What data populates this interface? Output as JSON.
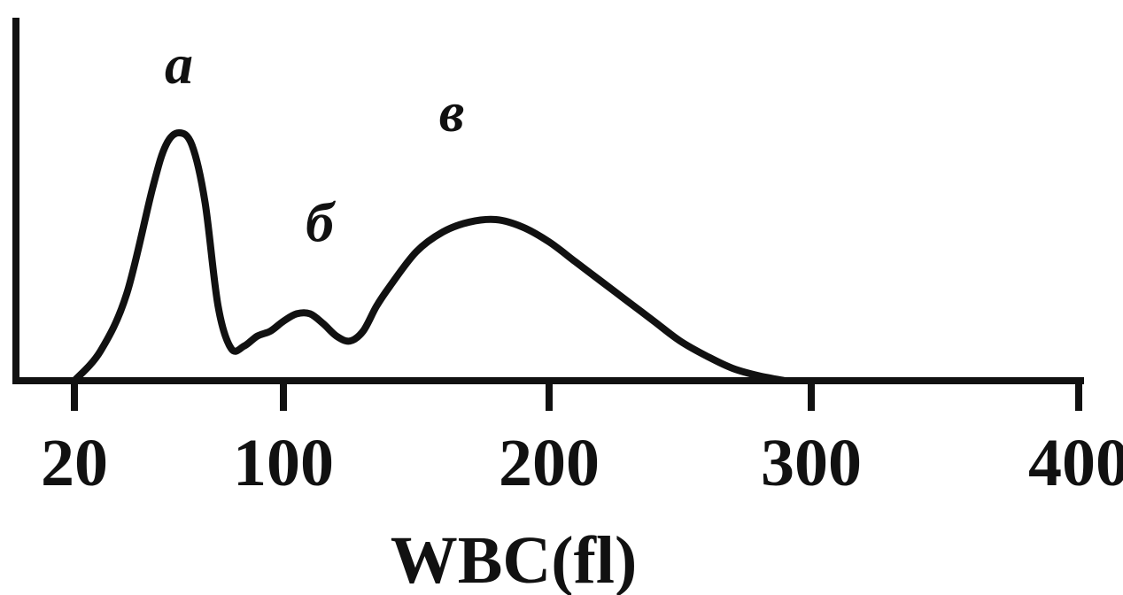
{
  "chart_data": {
    "type": "line",
    "xlabel": "WBC(fl)",
    "ylabel": "",
    "x_ticks": [
      20,
      100,
      200,
      300,
      400
    ],
    "xlim": [
      0,
      400
    ],
    "ylim": [
      0,
      1
    ],
    "grid": false,
    "series": [
      {
        "x": [
          20,
          30,
          40,
          50,
          55,
          60,
          65,
          70,
          75,
          80,
          85,
          90,
          95,
          100,
          105,
          110,
          115,
          120,
          125,
          130,
          135,
          140,
          150,
          160,
          170,
          180,
          190,
          200,
          210,
          220,
          230,
          240,
          250,
          260,
          270,
          280,
          290
        ],
        "y": [
          0.0,
          0.12,
          0.35,
          0.78,
          0.95,
          1.0,
          0.95,
          0.72,
          0.3,
          0.13,
          0.14,
          0.18,
          0.2,
          0.24,
          0.27,
          0.27,
          0.23,
          0.18,
          0.16,
          0.2,
          0.3,
          0.38,
          0.52,
          0.6,
          0.64,
          0.65,
          0.62,
          0.56,
          0.48,
          0.4,
          0.32,
          0.24,
          0.16,
          0.1,
          0.05,
          0.02,
          0.0
        ],
        "color": "#111111"
      }
    ],
    "annotations": [
      {
        "text": "a",
        "x": 60,
        "y": 1.0
      },
      {
        "text": "б",
        "x": 115,
        "y": 0.27
      },
      {
        "text": "в",
        "x": 180,
        "y": 0.65
      }
    ]
  }
}
